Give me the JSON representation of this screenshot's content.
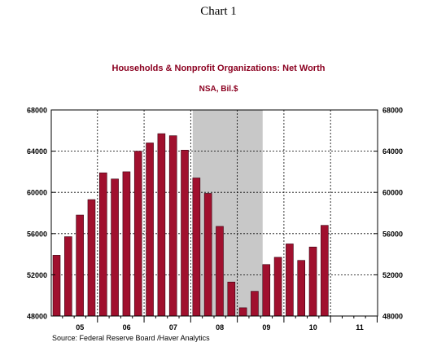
{
  "chart_data": {
    "type": "bar",
    "heading": "Chart 1",
    "title": "Households & Nonprofit Organizations: Net Worth",
    "subtitle": "NSA, Bil.$",
    "source": "Source:  Federal Reserve Board /Haver Analytics",
    "xlabel": "",
    "ylabel": "",
    "ylim": [
      48000,
      68000
    ],
    "y_ticks": [
      48000,
      52000,
      56000,
      60000,
      64000,
      68000
    ],
    "y_tick_labels": [
      "48000",
      "52000",
      "56000",
      "60000",
      "64000",
      "68000"
    ],
    "y_axis_both_sides": true,
    "grid": true,
    "x_tick_labels": [
      "05",
      "06",
      "07",
      "08",
      "09",
      "10",
      "11"
    ],
    "periods_per_label": 4,
    "first_label_index": 1,
    "recession_shading": {
      "from_bar": 12,
      "to_bar": 17
    },
    "values": [
      53900,
      55700,
      57800,
      59300,
      61900,
      61300,
      62000,
      64000,
      64800,
      65700,
      65500,
      64100,
      61400,
      59900,
      56700,
      51300,
      48800,
      50400,
      53000,
      53700,
      55000,
      53400,
      54700,
      56800
    ],
    "bar_color": "#a0102e",
    "shade_color": "#c8c8c8",
    "axis_color": "#000000"
  }
}
